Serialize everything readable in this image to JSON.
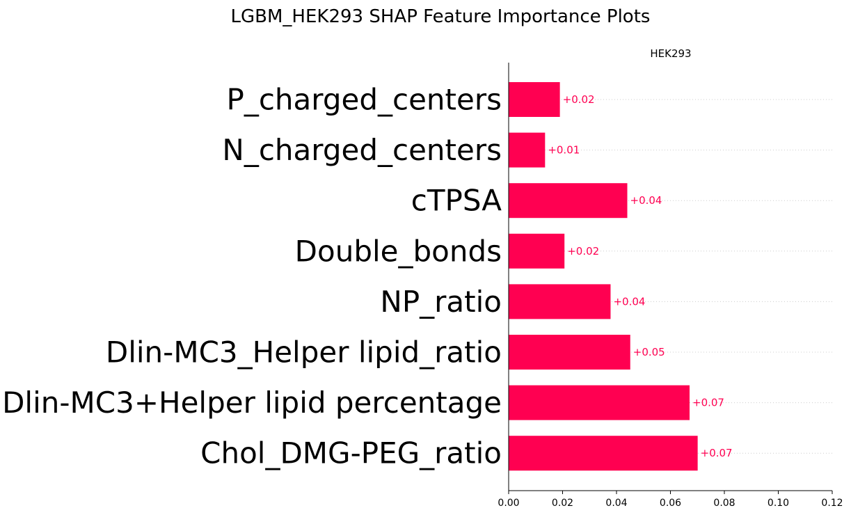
{
  "chart_data": {
    "type": "bar",
    "orientation": "horizontal",
    "title": "LGBM_HEK293 SHAP Feature Importance Plots",
    "subtitle": "HEK293",
    "categories": [
      "P_charged_centers",
      "N_charged_centers",
      "cTPSA",
      "Double_bonds",
      "NP_ratio",
      "Dlin-MC3_Helper lipid_ratio",
      "Dlin-MC3+Helper lipid percentage",
      "Chol_DMG-PEG_ratio"
    ],
    "values": [
      0.019,
      0.0135,
      0.044,
      0.0207,
      0.0378,
      0.0451,
      0.0671,
      0.0701
    ],
    "value_labels": [
      "+0.02",
      "+0.01",
      "+0.04",
      "+0.02",
      "+0.04",
      "+0.05",
      "+0.07",
      "+0.07"
    ],
    "xlim": [
      0,
      0.12
    ],
    "xticks": [
      0.0,
      0.02,
      0.04,
      0.06,
      0.08,
      0.1,
      0.12
    ],
    "xtick_labels": [
      "0.00",
      "0.02",
      "0.04",
      "0.06",
      "0.08",
      "0.10",
      "0.12"
    ],
    "xlabel": "",
    "ylabel": "",
    "grid": true,
    "bar_color": "#ff0051",
    "label_color": "#ff0051"
  }
}
